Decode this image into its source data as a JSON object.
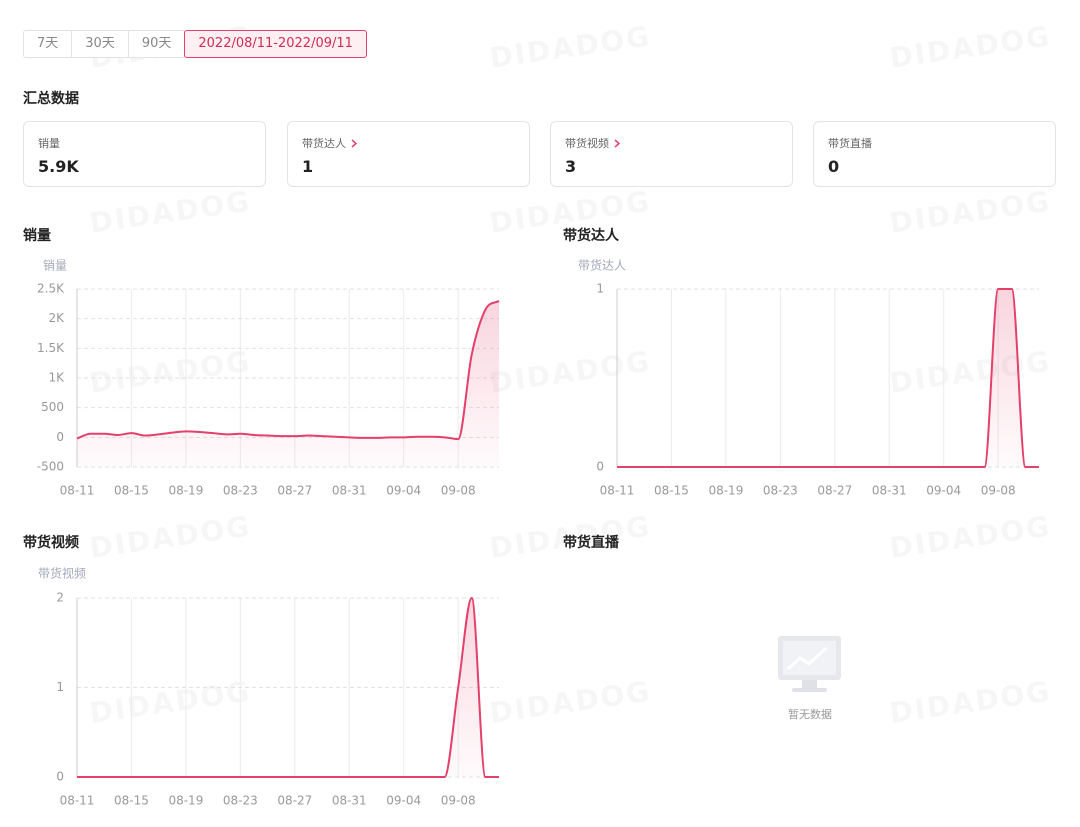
{
  "tabs": [
    "7天",
    "30天",
    "90天",
    "2022/08/11-2022/09/11"
  ],
  "active_tab": 3,
  "watermark": "DIDADOG",
  "summary": {
    "title": "汇总数据",
    "cards": [
      {
        "label": "销量",
        "value": "5.9K",
        "link": false
      },
      {
        "label": "带货达人",
        "value": "1",
        "link": true
      },
      {
        "label": "带货视频",
        "value": "3",
        "link": true
      },
      {
        "label": "带货直播",
        "value": "0",
        "link": false
      }
    ]
  },
  "chart_data": [
    {
      "type": "line",
      "title": "销量",
      "y_label": "销量",
      "categories": [
        "08-11",
        null,
        null,
        null,
        "08-15",
        null,
        null,
        null,
        "08-19",
        null,
        null,
        null,
        "08-23",
        null,
        null,
        null,
        "08-27",
        null,
        null,
        null,
        "08-31",
        null,
        null,
        null,
        "09-04",
        null,
        null,
        null,
        "09-08",
        null,
        null,
        null
      ],
      "values": [
        -20,
        60,
        60,
        40,
        70,
        30,
        50,
        80,
        100,
        90,
        70,
        50,
        60,
        40,
        30,
        20,
        20,
        30,
        20,
        10,
        0,
        -10,
        -10,
        0,
        0,
        10,
        10,
        0,
        -30,
        1400,
        2150,
        2300
      ],
      "color": "#e3406b",
      "ylim": [
        -500,
        2500
      ],
      "yticks": [
        -500,
        0,
        500,
        {
          "value": 1000,
          "label": "1K"
        },
        {
          "value": 1500,
          "label": "1.5K"
        },
        {
          "value": 2000,
          "label": "2K"
        },
        {
          "value": 2500,
          "label": "2.5K"
        }
      ],
      "grid": true
    },
    {
      "type": "line",
      "title": "带货达人",
      "y_label": "带货达人",
      "categories": [
        "08-11",
        null,
        null,
        null,
        "08-15",
        null,
        null,
        null,
        "08-19",
        null,
        null,
        null,
        "08-23",
        null,
        null,
        null,
        "08-27",
        null,
        null,
        null,
        "08-31",
        null,
        null,
        null,
        "09-04",
        null,
        null,
        null,
        "09-08",
        null,
        null,
        null
      ],
      "values": [
        0,
        0,
        0,
        0,
        0,
        0,
        0,
        0,
        0,
        0,
        0,
        0,
        0,
        0,
        0,
        0,
        0,
        0,
        0,
        0,
        0,
        0,
        0,
        0,
        0,
        0,
        0,
        0,
        1,
        1,
        0,
        0
      ],
      "color": "#e3406b",
      "ylim": [
        0,
        1
      ],
      "yticks": [
        0,
        1
      ],
      "grid": true
    },
    {
      "type": "line",
      "title": "带货视频",
      "y_label": "带货视频",
      "categories": [
        "08-11",
        null,
        null,
        null,
        "08-15",
        null,
        null,
        null,
        "08-19",
        null,
        null,
        null,
        "08-23",
        null,
        null,
        null,
        "08-27",
        null,
        null,
        null,
        "08-31",
        null,
        null,
        null,
        "09-04",
        null,
        null,
        null,
        "09-08",
        null,
        null,
        null
      ],
      "values": [
        0,
        0,
        0,
        0,
        0,
        0,
        0,
        0,
        0,
        0,
        0,
        0,
        0,
        0,
        0,
        0,
        0,
        0,
        0,
        0,
        0,
        0,
        0,
        0,
        0,
        0,
        0,
        0,
        1,
        2,
        0,
        0
      ],
      "color": "#e3406b",
      "ylim": [
        0,
        2
      ],
      "yticks": [
        0,
        1,
        2
      ],
      "grid": true
    },
    {
      "type": "empty",
      "title": "带货直播",
      "message": "暂无数据"
    }
  ]
}
